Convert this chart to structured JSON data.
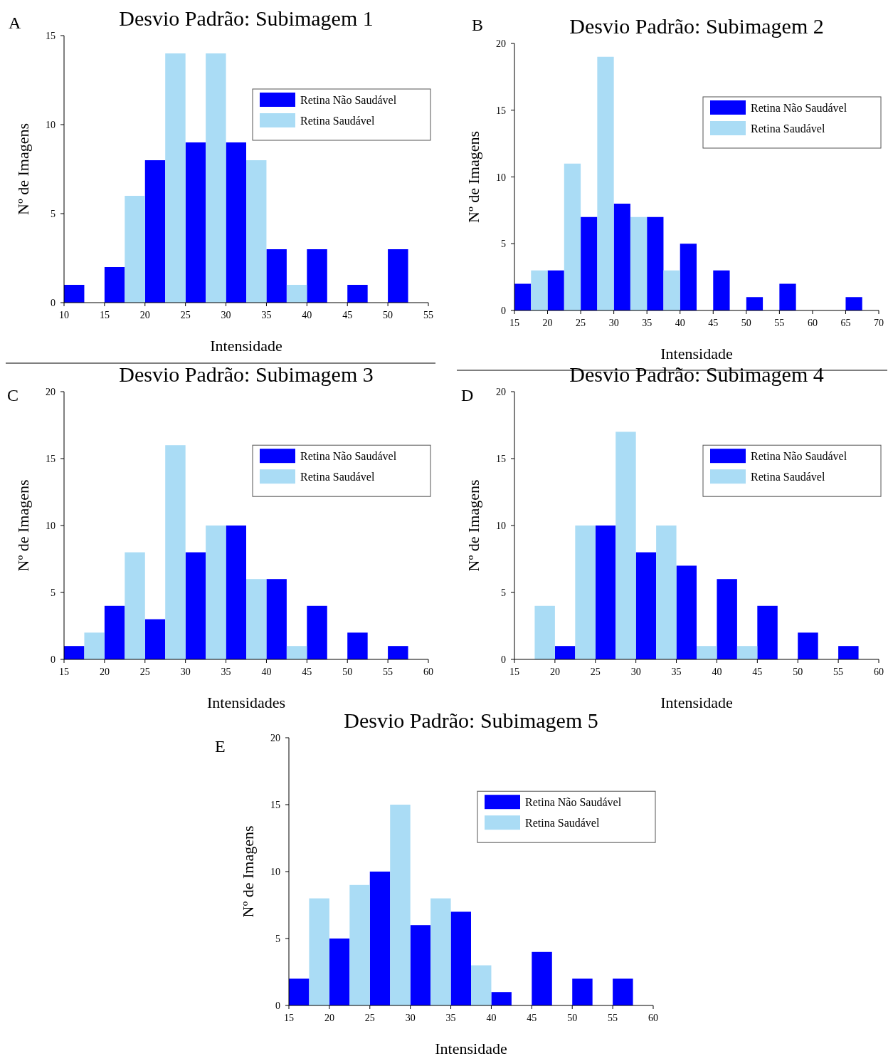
{
  "chart_data": [
    {
      "type": "bar",
      "title": "Desvio Padrão: Subimagem 1",
      "xlabel": "Intensidade",
      "ylabel": "Nº de Imagens",
      "annotations": [
        "A"
      ],
      "x": [
        12.5,
        17.5,
        22.5,
        27.5,
        32.5,
        37.5,
        42.5,
        47.5,
        52.5
      ],
      "xlim": [
        10,
        55
      ],
      "xticks": [
        10,
        15,
        20,
        25,
        30,
        35,
        40,
        45,
        50,
        55
      ],
      "ylim": [
        0,
        15
      ],
      "yticks": [
        0,
        5,
        10,
        15
      ],
      "legend": "top right",
      "series": [
        {
          "name": "Retina Não Saudável",
          "color": "#0000ff",
          "values": [
            1,
            2,
            8,
            9,
            9,
            3,
            3,
            1,
            3
          ]
        },
        {
          "name": "Retina Saudável",
          "color": "#aadcf5",
          "values": [
            0,
            6,
            14,
            14,
            8,
            1,
            0,
            0,
            0
          ]
        }
      ]
    },
    {
      "type": "bar",
      "title": "Desvio Padrão: Subimagem 2",
      "xlabel": "Intensidade",
      "ylabel": "Nº de Imagens",
      "annotations": [
        "B"
      ],
      "x": [
        17.5,
        22.5,
        27.5,
        32.5,
        37.5,
        42.5,
        47.5,
        52.5,
        57.5,
        62.5,
        67.5
      ],
      "xlim": [
        15,
        70
      ],
      "xticks": [
        15,
        20,
        25,
        30,
        35,
        40,
        45,
        50,
        55,
        60,
        65,
        70
      ],
      "ylim": [
        0,
        20
      ],
      "yticks": [
        0,
        5,
        10,
        15,
        20
      ],
      "legend": "top right",
      "series": [
        {
          "name": "Retina Não Saudável",
          "color": "#0000ff",
          "values": [
            2,
            3,
            7,
            8,
            7,
            5,
            3,
            1,
            2,
            0,
            1
          ]
        },
        {
          "name": "Retina Saudável",
          "color": "#aadcf5",
          "values": [
            3,
            11,
            19,
            7,
            3,
            0,
            0,
            0,
            0,
            0,
            0
          ]
        }
      ]
    },
    {
      "type": "bar",
      "title": "Desvio Padrão: Subimagem 3",
      "xlabel": "Intensidades",
      "ylabel": "Nº de Imagens",
      "annotations": [
        "C"
      ],
      "x": [
        17.5,
        22.5,
        27.5,
        32.5,
        37.5,
        42.5,
        47.5,
        52.5,
        57.5
      ],
      "xlim": [
        15,
        60
      ],
      "xticks": [
        15,
        20,
        25,
        30,
        35,
        40,
        45,
        50,
        55,
        60
      ],
      "ylim": [
        0,
        20
      ],
      "yticks": [
        0,
        5,
        10,
        15,
        20
      ],
      "legend": "top right",
      "series": [
        {
          "name": "Retina Não Saudável",
          "color": "#0000ff",
          "values": [
            1,
            4,
            3,
            8,
            10,
            6,
            4,
            2,
            1
          ]
        },
        {
          "name": "Retina Saudável",
          "color": "#aadcf5",
          "values": [
            2,
            8,
            16,
            10,
            6,
            1,
            0,
            0,
            0
          ]
        }
      ]
    },
    {
      "type": "bar",
      "title": "Desvio Padrão: Subimagem 4",
      "xlabel": "Intensidade",
      "ylabel": "Nº de Imagens",
      "annotations": [
        "D"
      ],
      "x": [
        17.5,
        22.5,
        27.5,
        32.5,
        37.5,
        42.5,
        47.5,
        52.5,
        57.5
      ],
      "xlim": [
        15,
        60
      ],
      "xticks": [
        15,
        20,
        25,
        30,
        35,
        40,
        45,
        50,
        55,
        60
      ],
      "ylim": [
        0,
        20
      ],
      "yticks": [
        0,
        5,
        10,
        15,
        20
      ],
      "legend": "top right",
      "series": [
        {
          "name": "Retina Não Saudável",
          "color": "#0000ff",
          "values": [
            0,
            1,
            10,
            8,
            7,
            6,
            4,
            2,
            1
          ]
        },
        {
          "name": "Retina Saudável",
          "color": "#aadcf5",
          "values": [
            4,
            10,
            17,
            10,
            1,
            1,
            0,
            0,
            0
          ]
        }
      ]
    },
    {
      "type": "bar",
      "title": "Desvio Padrão: Subimagem 5",
      "xlabel": "Intensidade",
      "ylabel": "Nº de Imagens",
      "annotations": [
        "E"
      ],
      "x": [
        17.5,
        22.5,
        27.5,
        32.5,
        37.5,
        42.5,
        47.5,
        52.5,
        57.5
      ],
      "xlim": [
        15,
        60
      ],
      "xticks": [
        15,
        20,
        25,
        30,
        35,
        40,
        45,
        50,
        55,
        60
      ],
      "ylim": [
        0,
        20
      ],
      "yticks": [
        0,
        5,
        10,
        15,
        20
      ],
      "legend": "top right",
      "series": [
        {
          "name": "Retina Não Saudável",
          "color": "#0000ff",
          "values": [
            2,
            5,
            10,
            6,
            7,
            1,
            4,
            2,
            2
          ]
        },
        {
          "name": "Retina Saudável",
          "color": "#aadcf5",
          "values": [
            8,
            9,
            15,
            8,
            3,
            0,
            0,
            0,
            0
          ]
        }
      ]
    }
  ]
}
